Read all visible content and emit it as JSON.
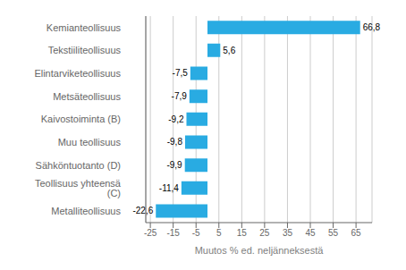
{
  "chart_data": {
    "type": "bar",
    "orientation": "horizontal",
    "categories": [
      "Metalliteollisuus",
      "Teollisuus yhteensä (C)",
      "Sähköntuotanto (D)",
      "Muu teollisuus",
      "Kaivostoiminta (B)",
      "Metsäteollisuus",
      "Elintarviketeollisuus",
      "Tekstiiliteollisuus",
      "Kemianteollisuus"
    ],
    "values": [
      -22.6,
      -11.4,
      -9.9,
      -9.8,
      -9.2,
      -7.9,
      -7.5,
      5.6,
      66.8
    ],
    "value_labels": [
      "-22,6",
      "-11,4",
      "-9,9",
      "-9,8",
      "-9,2",
      "-7,9",
      "-7,5",
      "5,6",
      "66,8"
    ],
    "data_labels": true,
    "color": "#29ABE2",
    "xlabel": "Muutos % ed. neljänneksestä",
    "xlim": [
      -27,
      72
    ],
    "xticks": [
      -25,
      -15,
      -5,
      5,
      15,
      25,
      35,
      45,
      55,
      65
    ],
    "grid": true
  }
}
